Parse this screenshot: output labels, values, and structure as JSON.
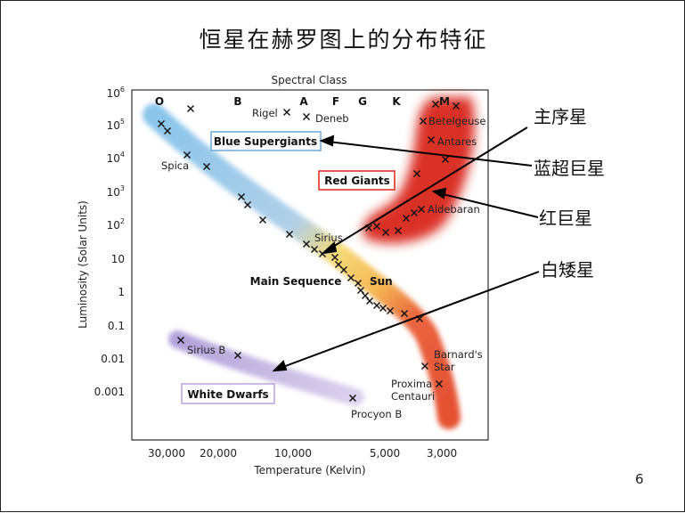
{
  "slide": {
    "title": "恒星在赫罗图上的分布特征",
    "page_number": "6"
  },
  "diagram": {
    "top_axis_title": "Spectral Class",
    "spectral_classes": [
      "O",
      "B",
      "A",
      "F",
      "G",
      "K",
      "M"
    ],
    "y_axis_title": "Luminosity (Solar Units)",
    "y_ticks": [
      {
        "base": "10",
        "exp": "6"
      },
      {
        "base": "10",
        "exp": "5"
      },
      {
        "base": "10",
        "exp": "4"
      },
      {
        "base": "10",
        "exp": "3"
      },
      {
        "base": "10",
        "exp": "2"
      },
      {
        "base": "10",
        "exp": ""
      },
      {
        "base": "1",
        "exp": ""
      },
      {
        "base": "0.1",
        "exp": ""
      },
      {
        "base": "0.01",
        "exp": ""
      },
      {
        "base": "0.001",
        "exp": ""
      }
    ],
    "x_axis_title": "Temperature (Kelvin)",
    "x_ticks": [
      "30,000",
      "20,000",
      "10,000",
      "5,000",
      "3,000"
    ],
    "region_labels": {
      "blue_supergiants": "Blue Supergiants",
      "red_giants": "Red Giants",
      "main_sequence": "Main Sequence",
      "white_dwarfs": "White Dwarfs"
    },
    "star_labels": {
      "rigel": "Rigel",
      "deneb": "Deneb",
      "betelgeuse": "Betelgeuse",
      "antares": "Antares",
      "spica": "Spica",
      "aldebaran": "Aldebaran",
      "sirius": "Sirius",
      "sun": "Sun",
      "sirius_b": "Sirius B",
      "barnards_1": "Barnard's",
      "barnards_2": "Star",
      "proxima_1": "Proxima",
      "proxima_2": "Centauri",
      "procyon_b": "Procyon B"
    },
    "callouts": {
      "main_sequence": "主序星",
      "blue_supergiants": "蓝超巨星",
      "red_giants": "红巨星",
      "white_dwarfs": "白矮星"
    },
    "colors": {
      "main_sequence_blue": "#7fbfe8",
      "main_sequence_yellow": "#f7d35a",
      "main_sequence_red": "#e8542a",
      "red_giants": "#d9261b",
      "white_dwarfs": "#b9a3dc",
      "blue_label_border": "#6aa8d8",
      "red_label_border": "#d9261b",
      "purple_label_border": "#b9a3dc"
    }
  }
}
